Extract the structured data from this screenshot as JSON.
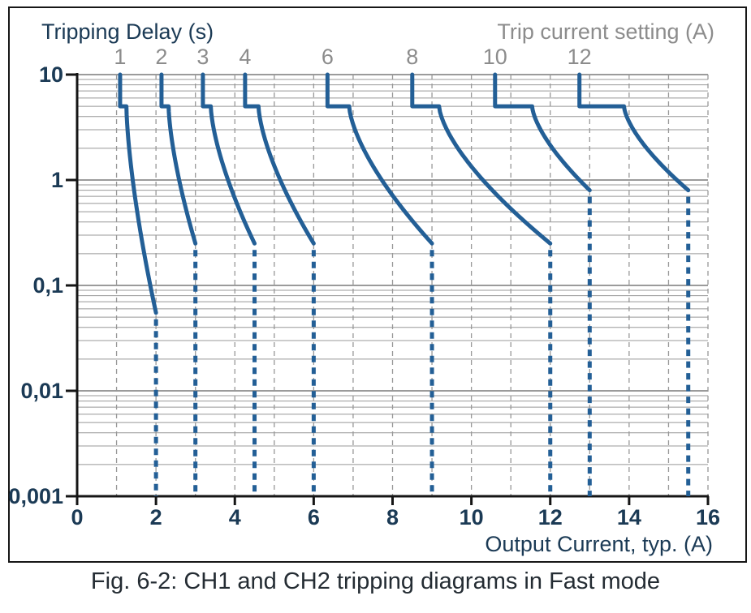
{
  "figure": {
    "caption": "Fig. 6-2: CH1 and CH2 tripping diagrams in Fast mode"
  },
  "chart_data": {
    "type": "line",
    "title_left": "Tripping Delay (s)",
    "title_right": "Trip current setting (A)",
    "xlabel": "Output Current, typ. (A)",
    "x_axis": {
      "scale": "linear",
      "min": 0,
      "max": 16,
      "tick_values": [
        0,
        2,
        4,
        6,
        8,
        10,
        12,
        14,
        16
      ],
      "tick_labels": [
        "0",
        "2",
        "4",
        "6",
        "8",
        "10",
        "12",
        "14",
        "16"
      ],
      "minor_gridline_step_A": 1,
      "minor_gridline_style": "dashed gray vertical lines at every 1 A"
    },
    "y_axis": {
      "scale": "log",
      "min": 0.001,
      "max": 10,
      "tick_values": [
        10,
        1,
        0.1,
        0.01,
        0.001
      ],
      "tick_labels": [
        "10",
        "1",
        "0,1",
        "0,01",
        "0,001"
      ],
      "minor_gridlines": "solid gray lines at 2-9 of each log decade"
    },
    "curve_model": {
      "top_delay_s": 10,
      "plateau_delay_s": 5,
      "decay_exponent": 1.5,
      "dashed_segment": "vertical current-limit line from solid-curve end down to 0.001 s"
    },
    "series": [
      {
        "trip_setting_label": "1",
        "trip_setting_A": 1,
        "vertical_x_A": 1.09,
        "knee_x_A": 1.25,
        "solid_end_x_A": 2.0,
        "solid_end_y_s": 0.055
      },
      {
        "trip_setting_label": "2",
        "trip_setting_A": 2,
        "vertical_x_A": 2.14,
        "knee_x_A": 2.32,
        "solid_end_x_A": 3.0,
        "solid_end_y_s": 0.25
      },
      {
        "trip_setting_label": "3",
        "trip_setting_A": 3,
        "vertical_x_A": 3.19,
        "knee_x_A": 3.39,
        "solid_end_x_A": 4.5,
        "solid_end_y_s": 0.25
      },
      {
        "trip_setting_label": "4",
        "trip_setting_A": 4,
        "vertical_x_A": 4.26,
        "knee_x_A": 4.6,
        "solid_end_x_A": 6.0,
        "solid_end_y_s": 0.25
      },
      {
        "trip_setting_label": "6",
        "trip_setting_A": 6,
        "vertical_x_A": 6.35,
        "knee_x_A": 6.9,
        "solid_end_x_A": 9.0,
        "solid_end_y_s": 0.25
      },
      {
        "trip_setting_label": "8",
        "trip_setting_A": 8,
        "vertical_x_A": 8.5,
        "knee_x_A": 9.18,
        "solid_end_x_A": 12.0,
        "solid_end_y_s": 0.25
      },
      {
        "trip_setting_label": "10",
        "trip_setting_A": 10,
        "vertical_x_A": 10.6,
        "knee_x_A": 11.54,
        "solid_end_x_A": 13.0,
        "solid_end_y_s": 0.8
      },
      {
        "trip_setting_label": "12",
        "trip_setting_A": 12,
        "vertical_x_A": 12.74,
        "knee_x_A": 13.87,
        "solid_end_x_A": 15.5,
        "solid_end_y_s": 0.8
      }
    ],
    "colors": {
      "curve": "#235f96",
      "grid_minor": "#989898",
      "grid_major": "#7a7a7a",
      "axis": "#151515",
      "label_dark": "#1b3a55",
      "label_gray": "#8c8c8c",
      "caption": "#242c33"
    }
  }
}
